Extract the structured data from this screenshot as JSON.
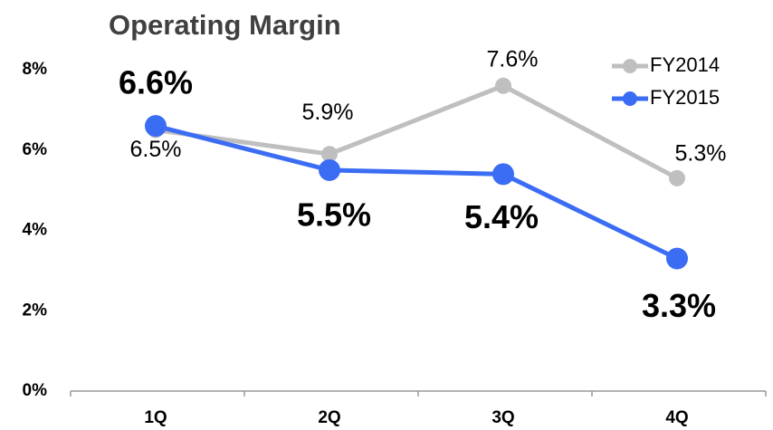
{
  "chart_data": {
    "type": "line",
    "title": "Operating Margin",
    "categories": [
      "1Q",
      "2Q",
      "3Q",
      "4Q"
    ],
    "series": [
      {
        "name": "FY2014",
        "color": "#bfbfbf",
        "values": [
          6.5,
          5.9,
          7.6,
          5.3
        ],
        "value_labels": [
          "6.5%",
          "5.9%",
          "7.6%",
          "5.3%"
        ]
      },
      {
        "name": "FY2015",
        "color": "#3b6cf4",
        "values": [
          6.6,
          5.5,
          5.4,
          3.3
        ],
        "value_labels": [
          "6.6%",
          "5.5%",
          "5.4%",
          "3.3%"
        ]
      }
    ],
    "ylim": [
      0,
      8
    ],
    "yticks": [
      {
        "value": 0,
        "label": "0%"
      },
      {
        "value": 2,
        "label": "2%"
      },
      {
        "value": 4,
        "label": "4%"
      },
      {
        "value": 6,
        "label": "6%"
      },
      {
        "value": 8,
        "label": "8%"
      }
    ],
    "grid": false,
    "legend": "upper right"
  }
}
